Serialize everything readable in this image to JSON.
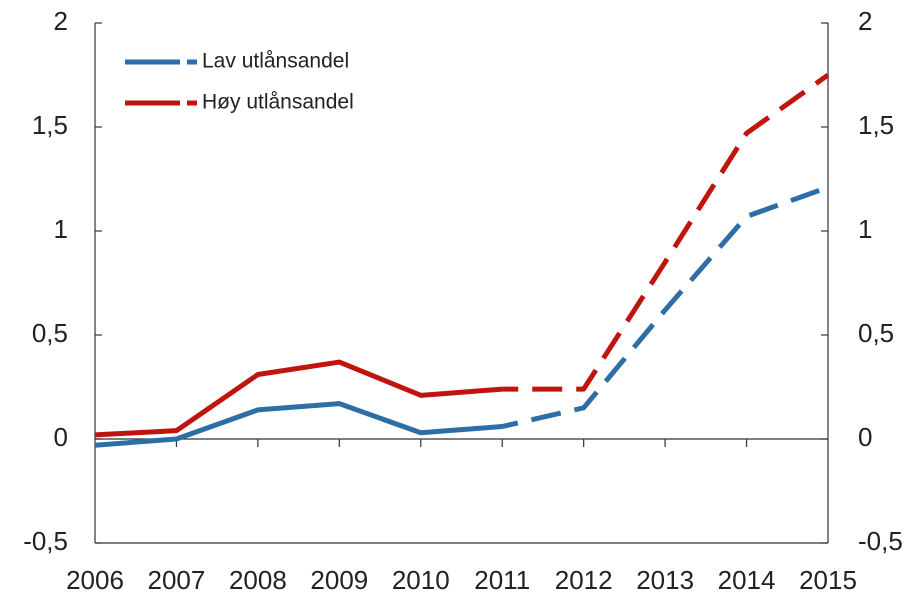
{
  "chart_data": {
    "type": "line",
    "categories": [
      "2006",
      "2007",
      "2008",
      "2009",
      "2010",
      "2011",
      "2012",
      "2013",
      "2014",
      "2015"
    ],
    "dashed_from": "2011",
    "series": [
      {
        "name": "Lav utlånsandel",
        "color": "#2e6ea6",
        "values": [
          -0.03,
          0.0,
          0.14,
          0.17,
          0.03,
          0.06,
          0.15,
          0.62,
          1.07,
          1.21
        ]
      },
      {
        "name": "Høy utlånsandel",
        "color": "#c0140e",
        "values": [
          0.02,
          0.04,
          0.31,
          0.37,
          0.21,
          0.24,
          0.24,
          0.85,
          1.47,
          1.75
        ]
      }
    ],
    "ylim": [
      -0.5,
      2
    ],
    "yticks": [
      {
        "value": -0.5,
        "label": "-0,5"
      },
      0,
      {
        "value": 0.5,
        "label": "0,5"
      },
      1,
      {
        "value": 1.5,
        "label": "1,5"
      },
      2
    ],
    "y2lim": [
      -0.5,
      2
    ],
    "y2ticks": [
      {
        "value": -0.5,
        "label": "-0,5"
      },
      0,
      {
        "value": 0.5,
        "label": "0,5"
      },
      1,
      {
        "value": 1.5,
        "label": "1,5"
      },
      2
    ],
    "legend": "upper left"
  }
}
